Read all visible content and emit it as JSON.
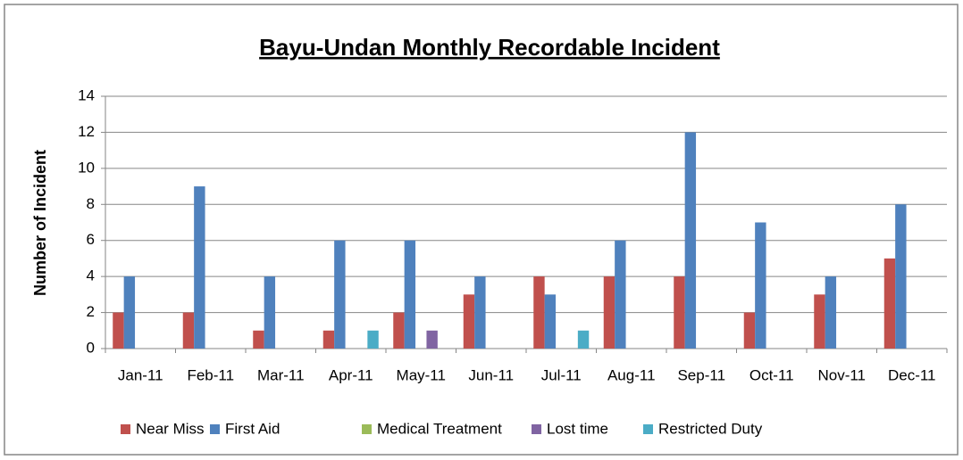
{
  "chart_data": {
    "type": "bar",
    "title": "Bayu-Undan Monthly Recordable Incident",
    "y_label": "Number of Incident",
    "categories": [
      "Jan-11",
      "Feb-11",
      "Mar-11",
      "Apr-11",
      "May-11",
      "Jun-11",
      "Jul-11",
      "Aug-11",
      "Sep-11",
      "Oct-11",
      "Nov-11",
      "Dec-11"
    ],
    "series": [
      {
        "name": "Near Miss",
        "color": "#c0504d",
        "values": [
          2,
          2,
          1,
          1,
          2,
          3,
          4,
          4,
          4,
          2,
          3,
          5
        ]
      },
      {
        "name": "First Aid",
        "color": "#4f81bd",
        "values": [
          4,
          9,
          4,
          6,
          6,
          4,
          3,
          6,
          12,
          7,
          4,
          8
        ]
      },
      {
        "name": "Medical Treatment",
        "color": "#9bbb59",
        "values": [
          0,
          0,
          0,
          0,
          0,
          0,
          0,
          0,
          0,
          0,
          0,
          0
        ]
      },
      {
        "name": "Lost time",
        "color": "#8064a2",
        "values": [
          0,
          0,
          0,
          0,
          1,
          0,
          0,
          0,
          0,
          0,
          0,
          0
        ]
      },
      {
        "name": "Restricted Duty",
        "color": "#4bacc6",
        "values": [
          0,
          0,
          0,
          1,
          0,
          0,
          1,
          0,
          0,
          0,
          0,
          0
        ]
      }
    ],
    "ylim": [
      0,
      14
    ],
    "yticks": [
      0,
      2,
      4,
      6,
      8,
      10,
      12,
      14
    ],
    "grid": true,
    "legend": "bottom"
  }
}
